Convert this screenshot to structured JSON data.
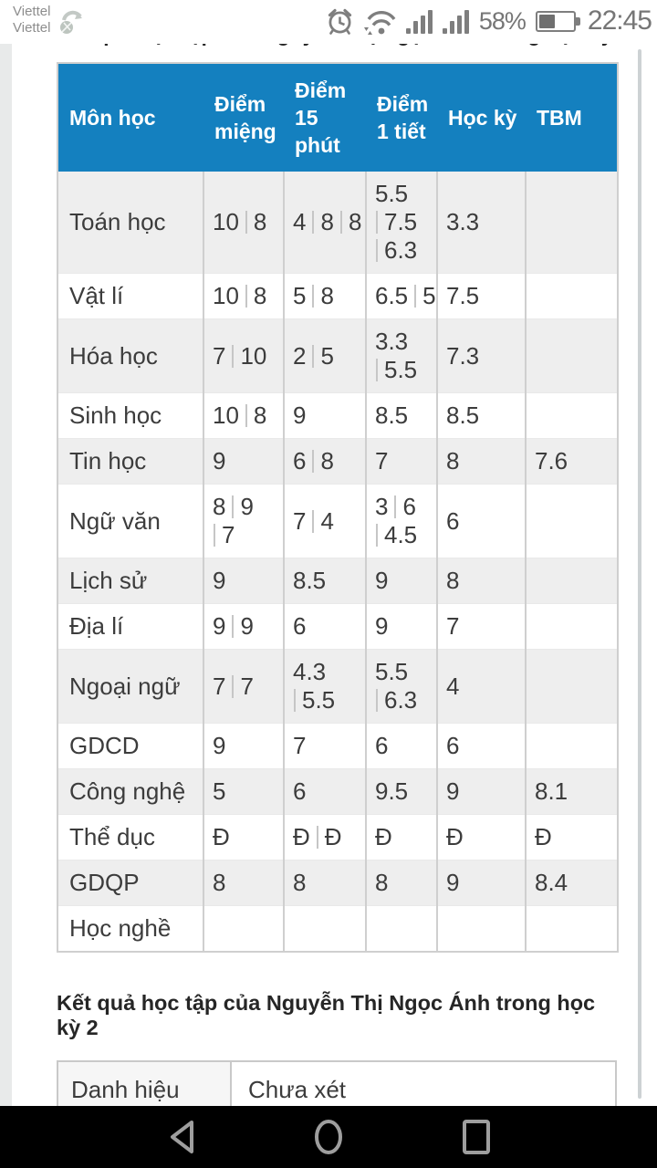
{
  "status_bar": {
    "carrier_line1": "Viettel",
    "carrier_line2": "Viettel",
    "battery_percent": "58%",
    "time": "22:45",
    "icons": [
      "notification-icon",
      "alarm-icon",
      "wifi-icon",
      "signal-sim1-icon",
      "signal-sim2-icon",
      "battery-icon"
    ]
  },
  "partial_heading": "Kết quả học tập của Nguyễn Thị Ngọc Ánh trong học kỳ 2",
  "grades_table": {
    "columns": [
      "Môn học",
      "Điểm miệng",
      "Điểm 15 phút",
      "Điểm 1 tiết",
      "Học kỳ",
      "TBM"
    ],
    "rows": [
      {
        "subject": "Toán học",
        "cells": [
          [
            [
              "10",
              "8"
            ]
          ],
          [
            [
              "4",
              "8",
              "8"
            ]
          ],
          [
            [
              "5.5"
            ],
            [
              "7.5"
            ],
            [
              "6.3"
            ]
          ],
          [
            [
              "3.3"
            ]
          ],
          []
        ]
      },
      {
        "subject": "Vật lí",
        "cells": [
          [
            [
              "10",
              "8"
            ]
          ],
          [
            [
              "5",
              "8"
            ]
          ],
          [
            [
              "6.5",
              "5"
            ]
          ],
          [
            [
              "7.5"
            ]
          ],
          []
        ]
      },
      {
        "subject": "Hóa học",
        "cells": [
          [
            [
              "7",
              "10"
            ]
          ],
          [
            [
              "2",
              "5"
            ]
          ],
          [
            [
              "3.3"
            ],
            [
              "5.5"
            ]
          ],
          [
            [
              "7.3"
            ]
          ],
          []
        ]
      },
      {
        "subject": "Sinh học",
        "cells": [
          [
            [
              "10",
              "8"
            ]
          ],
          [
            [
              "9"
            ]
          ],
          [
            [
              "8.5"
            ]
          ],
          [
            [
              "8.5"
            ]
          ],
          []
        ]
      },
      {
        "subject": "Tin học",
        "cells": [
          [
            [
              "9"
            ]
          ],
          [
            [
              "6",
              "8"
            ]
          ],
          [
            [
              "7"
            ]
          ],
          [
            [
              "8"
            ]
          ],
          [
            [
              "7.6"
            ]
          ]
        ]
      },
      {
        "subject": "Ngữ văn",
        "cells": [
          [
            [
              "8",
              "9"
            ],
            [
              "7"
            ]
          ],
          [
            [
              "7",
              "4"
            ]
          ],
          [
            [
              "3",
              "6"
            ],
            [
              "4.5"
            ]
          ],
          [
            [
              "6"
            ]
          ],
          []
        ]
      },
      {
        "subject": "Lịch sử",
        "cells": [
          [
            [
              "9"
            ]
          ],
          [
            [
              "8.5"
            ]
          ],
          [
            [
              "9"
            ]
          ],
          [
            [
              "8"
            ]
          ],
          []
        ]
      },
      {
        "subject": "Địa lí",
        "cells": [
          [
            [
              "9",
              "9"
            ]
          ],
          [
            [
              "6"
            ]
          ],
          [
            [
              "9"
            ]
          ],
          [
            [
              "7"
            ]
          ],
          []
        ]
      },
      {
        "subject": "Ngoại ngữ",
        "cells": [
          [
            [
              "7",
              "7"
            ]
          ],
          [
            [
              "4.3"
            ],
            [
              "5.5"
            ]
          ],
          [
            [
              "5.5"
            ],
            [
              "6.3"
            ]
          ],
          [
            [
              "4"
            ]
          ],
          []
        ]
      },
      {
        "subject": "GDCD",
        "cells": [
          [
            [
              "9"
            ]
          ],
          [
            [
              "7"
            ]
          ],
          [
            [
              "6"
            ]
          ],
          [
            [
              "6"
            ]
          ],
          []
        ]
      },
      {
        "subject": "Công nghệ",
        "cells": [
          [
            [
              "5"
            ]
          ],
          [
            [
              "6"
            ]
          ],
          [
            [
              "9.5"
            ]
          ],
          [
            [
              "9"
            ]
          ],
          [
            [
              "8.1"
            ]
          ]
        ]
      },
      {
        "subject": "Thể dục",
        "cells": [
          [
            [
              "Đ"
            ]
          ],
          [
            [
              "Đ",
              "Đ"
            ]
          ],
          [
            [
              "Đ"
            ]
          ],
          [
            [
              "Đ"
            ]
          ],
          [
            [
              "Đ"
            ]
          ]
        ]
      },
      {
        "subject": "GDQP",
        "cells": [
          [
            [
              "8"
            ]
          ],
          [
            [
              "8"
            ]
          ],
          [
            [
              "8"
            ]
          ],
          [
            [
              "9"
            ]
          ],
          [
            [
              "8.4"
            ]
          ]
        ]
      },
      {
        "subject": "Học nghề",
        "cells": [
          [],
          [],
          [],
          [],
          []
        ]
      }
    ]
  },
  "section_heading": "Kết quả học tập của Nguyễn Thị Ngọc Ánh trong học kỳ 2",
  "summary_table": {
    "rows": [
      {
        "label": "Danh hiệu",
        "value": "Chưa xét"
      }
    ]
  },
  "nav_bar": {
    "buttons": [
      "back",
      "home",
      "recents"
    ]
  },
  "colors": {
    "header_bg": "#1480BF",
    "header_text": "#FFFFFF",
    "row_alt": "#EEEEEE",
    "grid_line": "#CFCFCF",
    "cell_text": "#3C3C3C",
    "status_gray": "#7E7E7E",
    "nav_bg": "#000000",
    "nav_icon": "#9E9E9E"
  }
}
